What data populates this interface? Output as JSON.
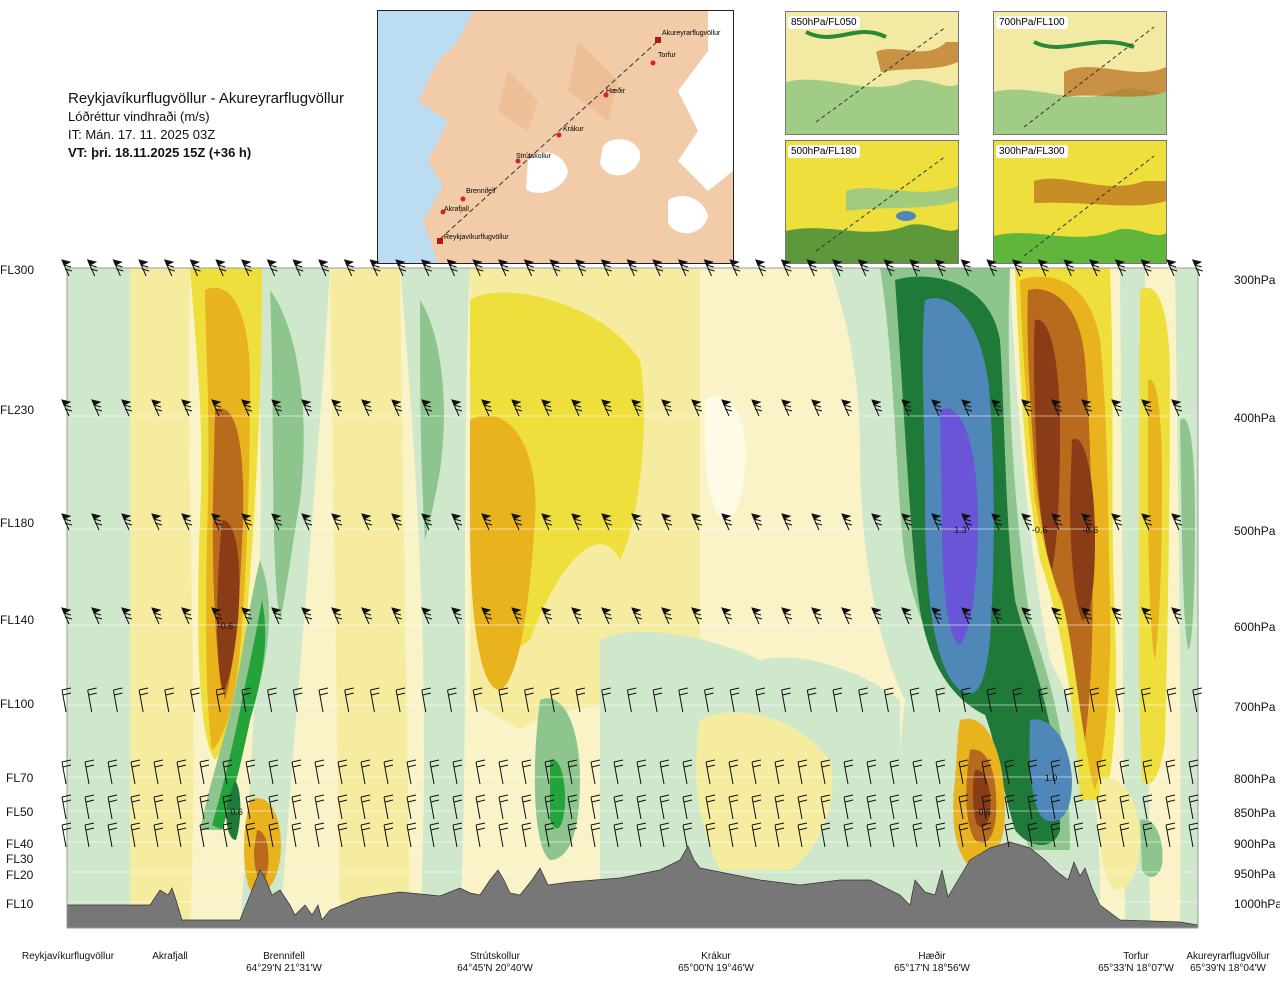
{
  "header": {
    "title": "Reykjavíkurflugvöllur - Akureyrarflugvöllur",
    "variable": "Lóðréttur vindhraði (m/s)",
    "issue_time": "IT: Mán. 17. 11. 2025 03Z",
    "valid_time": "VT: þri. 18.11.2025 15Z (+36 h)"
  },
  "thumbnails": [
    {
      "label": "850hPa/FL050"
    },
    {
      "label": "700hPa/FL100"
    },
    {
      "label": "500hPa/FL180"
    },
    {
      "label": "300hPa/FL300"
    }
  ],
  "map": {
    "stations": [
      "Akureyrarflugvöllur",
      "Torfur",
      "Hæðir",
      "Krákur",
      "Strútskollur",
      "Brennifell",
      "Akrafjall",
      "Reykjavíkurflugvöllur"
    ]
  },
  "chart_data": {
    "type": "heatmap",
    "y_left_ticks": [
      "FL300",
      "FL230",
      "FL180",
      "FL140",
      "FL100",
      "FL70",
      "FL50",
      "FL40",
      "FL30",
      "FL20",
      "FL10"
    ],
    "y_right_ticks": [
      "300hPa",
      "400hPa",
      "500hPa",
      "600hPa",
      "700hPa",
      "800hPa",
      "850hPa",
      "900hPa",
      "950hPa",
      "1000hPa"
    ],
    "pressure_levels_hPa": [
      300,
      400,
      500,
      600,
      700,
      800,
      850,
      900,
      950,
      1000
    ],
    "annotations": [
      {
        "text": "-0.6",
        "station_frac": 0.14,
        "pressure_hPa": 600
      },
      {
        "text": "0.6",
        "station_frac": 0.15,
        "pressure_hPa": 850
      },
      {
        "text": "1.3",
        "station_frac": 0.79,
        "pressure_hPa": 500
      },
      {
        "text": "-0.6",
        "station_frac": 0.86,
        "pressure_hPa": 500
      },
      {
        "text": "-0.6",
        "station_frac": 0.905,
        "pressure_hPa": 500
      },
      {
        "text": "1.0",
        "station_frac": 0.87,
        "pressure_hPa": 800
      },
      {
        "text": "-0.6",
        "station_frac": 0.81,
        "pressure_hPa": 850
      }
    ],
    "x_stations": [
      {
        "name": "Reykjavíkurflugvöllur",
        "coord": ""
      },
      {
        "name": "Akrafjall",
        "coord": ""
      },
      {
        "name": "Brennifell",
        "coord": "64°29'N 21°31'W"
      },
      {
        "name": "Strútskollur",
        "coord": "64°45'N 20°40'W"
      },
      {
        "name": "Krákur",
        "coord": "65°00'N 19°46'W"
      },
      {
        "name": "Hæðir",
        "coord": "65°17'N 18°56'W"
      },
      {
        "name": "Torfur",
        "coord": "65°33'N 18°07'W"
      },
      {
        "name": "Akureyrarflugvöllur",
        "coord": "65°39'N 18°04'W"
      }
    ],
    "legend": "none",
    "colors": {
      "strong_up": "#6a55d8",
      "up_blue": "#4f88b8",
      "up_dark_green": "#1f7a3a",
      "up_green": "#24a33a",
      "up_mid_green": "#8ec58f",
      "up_light_green": "#cfe8cc",
      "neutral": "#fbf3c8",
      "down_pale_yellow": "#f6ec9f",
      "down_yellow": "#efdf3c",
      "down_orange": "#e8b31d",
      "down_brown": "#b86b1c",
      "strong_down": "#8a3c16",
      "terrain": "#777777"
    }
  }
}
